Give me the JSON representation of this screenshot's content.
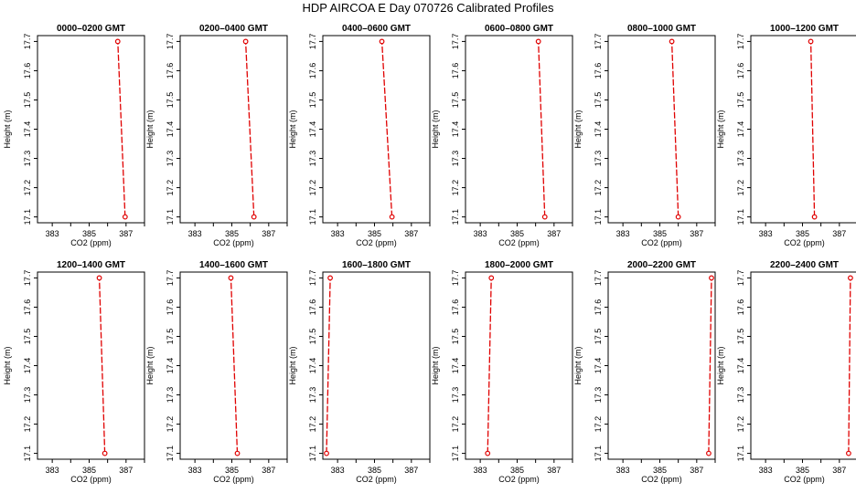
{
  "figure": {
    "title": "HDP  AIRCOA E  Day 070726  Calibrated Profiles"
  },
  "chart_data": [
    {
      "type": "line",
      "title": "0000–0200 GMT",
      "xlabel": "CO2 (ppm)",
      "ylabel": "Height (m)",
      "xticks": [
        "383",
        "385",
        "387"
      ],
      "yticks": [
        "17.1",
        "17.2",
        "17.3",
        "17.4",
        "17.5",
        "17.6",
        "17.7"
      ],
      "xlim": [
        382.2,
        388.0
      ],
      "ylim": [
        17.08,
        17.72
      ],
      "grid": false,
      "line_style": "dashed",
      "color": "#e00000",
      "x": [
        386.95,
        386.55
      ],
      "y": [
        17.1,
        17.7
      ]
    },
    {
      "type": "line",
      "title": "0200–0400 GMT",
      "xlabel": "CO2 (ppm)",
      "ylabel": "Height (m)",
      "xticks": [
        "383",
        "385",
        "387"
      ],
      "yticks": [
        "17.1",
        "17.2",
        "17.3",
        "17.4",
        "17.5",
        "17.6",
        "17.7"
      ],
      "xlim": [
        382.2,
        388.0
      ],
      "ylim": [
        17.08,
        17.72
      ],
      "grid": false,
      "line_style": "dashed",
      "color": "#e00000",
      "x": [
        386.2,
        385.75
      ],
      "y": [
        17.1,
        17.7
      ]
    },
    {
      "type": "line",
      "title": "0400–0600 GMT",
      "xlabel": "CO2 (ppm)",
      "ylabel": "Height (m)",
      "xticks": [
        "383",
        "385",
        "387"
      ],
      "yticks": [
        "17.1",
        "17.2",
        "17.3",
        "17.4",
        "17.5",
        "17.6",
        "17.7"
      ],
      "xlim": [
        382.2,
        388.0
      ],
      "ylim": [
        17.08,
        17.72
      ],
      "grid": false,
      "line_style": "dashed",
      "color": "#e00000",
      "x": [
        385.95,
        385.4
      ],
      "y": [
        17.1,
        17.7
      ]
    },
    {
      "type": "line",
      "title": "0600–0800 GMT",
      "xlabel": "CO2 (ppm)",
      "ylabel": "Height (m)",
      "xticks": [
        "383",
        "385",
        "387"
      ],
      "yticks": [
        "17.1",
        "17.2",
        "17.3",
        "17.4",
        "17.5",
        "17.6",
        "17.7"
      ],
      "xlim": [
        382.2,
        388.0
      ],
      "ylim": [
        17.08,
        17.72
      ],
      "grid": false,
      "line_style": "dashed",
      "color": "#e00000",
      "x": [
        386.5,
        386.15
      ],
      "y": [
        17.1,
        17.7
      ]
    },
    {
      "type": "line",
      "title": "0800–1000 GMT",
      "xlabel": "CO2 (ppm)",
      "ylabel": "Height (m)",
      "xticks": [
        "383",
        "385",
        "387"
      ],
      "yticks": [
        "17.1",
        "17.2",
        "17.3",
        "17.4",
        "17.5",
        "17.6",
        "17.7"
      ],
      "xlim": [
        382.2,
        388.0
      ],
      "ylim": [
        17.08,
        17.72
      ],
      "grid": false,
      "line_style": "dashed",
      "color": "#e00000",
      "x": [
        386.0,
        385.65
      ],
      "y": [
        17.1,
        17.7
      ]
    },
    {
      "type": "line",
      "title": "1000–1200 GMT",
      "xlabel": "CO2 (ppm)",
      "ylabel": "Height (m)",
      "xticks": [
        "383",
        "385",
        "387"
      ],
      "yticks": [
        "17.1",
        "17.2",
        "17.3",
        "17.4",
        "17.5",
        "17.6",
        "17.7"
      ],
      "xlim": [
        382.2,
        388.0
      ],
      "ylim": [
        17.08,
        17.72
      ],
      "grid": false,
      "line_style": "dashed",
      "color": "#e00000",
      "x": [
        385.65,
        385.45
      ],
      "y": [
        17.1,
        17.7
      ]
    },
    {
      "type": "line",
      "title": "1200–1400 GMT",
      "xlabel": "CO2 (ppm)",
      "ylabel": "Height (m)",
      "xticks": [
        "383",
        "385",
        "387"
      ],
      "yticks": [
        "17.1",
        "17.2",
        "17.3",
        "17.4",
        "17.5",
        "17.6",
        "17.7"
      ],
      "xlim": [
        382.2,
        388.0
      ],
      "ylim": [
        17.08,
        17.72
      ],
      "grid": false,
      "line_style": "dashed",
      "color": "#e00000",
      "x": [
        385.85,
        385.55
      ],
      "y": [
        17.1,
        17.7
      ]
    },
    {
      "type": "line",
      "title": "1400–1600 GMT",
      "xlabel": "CO2 (ppm)",
      "ylabel": "Height (m)",
      "xticks": [
        "383",
        "385",
        "387"
      ],
      "yticks": [
        "17.1",
        "17.2",
        "17.3",
        "17.4",
        "17.5",
        "17.6",
        "17.7"
      ],
      "xlim": [
        382.2,
        388.0
      ],
      "ylim": [
        17.08,
        17.72
      ],
      "grid": false,
      "line_style": "dashed",
      "color": "#e00000",
      "x": [
        385.3,
        384.95
      ],
      "y": [
        17.1,
        17.7
      ]
    },
    {
      "type": "line",
      "title": "1600–1800 GMT",
      "xlabel": "CO2 (ppm)",
      "ylabel": "Height (m)",
      "xticks": [
        "383",
        "385",
        "387"
      ],
      "yticks": [
        "17.1",
        "17.2",
        "17.3",
        "17.4",
        "17.5",
        "17.6",
        "17.7"
      ],
      "xlim": [
        382.2,
        388.0
      ],
      "ylim": [
        17.08,
        17.72
      ],
      "grid": false,
      "line_style": "dashed",
      "color": "#e00000",
      "x": [
        382.4,
        382.6
      ],
      "y": [
        17.1,
        17.7
      ]
    },
    {
      "type": "line",
      "title": "1800–2000 GMT",
      "xlabel": "CO2 (ppm)",
      "ylabel": "Height (m)",
      "xticks": [
        "383",
        "385",
        "387"
      ],
      "yticks": [
        "17.1",
        "17.2",
        "17.3",
        "17.4",
        "17.5",
        "17.6",
        "17.7"
      ],
      "xlim": [
        382.2,
        388.0
      ],
      "ylim": [
        17.08,
        17.72
      ],
      "grid": false,
      "line_style": "dashed",
      "color": "#e00000",
      "x": [
        383.4,
        383.6
      ],
      "y": [
        17.1,
        17.7
      ]
    },
    {
      "type": "line",
      "title": "2000–2200 GMT",
      "xlabel": "CO2 (ppm)",
      "ylabel": "Height (m)",
      "xticks": [
        "383",
        "385",
        "387"
      ],
      "yticks": [
        "17.1",
        "17.2",
        "17.3",
        "17.4",
        "17.5",
        "17.6",
        "17.7"
      ],
      "xlim": [
        382.2,
        388.0
      ],
      "ylim": [
        17.08,
        17.72
      ],
      "grid": false,
      "line_style": "dashed",
      "color": "#e00000",
      "x": [
        387.65,
        387.8
      ],
      "y": [
        17.1,
        17.7
      ]
    },
    {
      "type": "line",
      "title": "2200–2400 GMT",
      "xlabel": "CO2 (ppm)",
      "ylabel": "Height (m)",
      "xticks": [
        "383",
        "385",
        "387"
      ],
      "yticks": [
        "17.1",
        "17.2",
        "17.3",
        "17.4",
        "17.5",
        "17.6",
        "17.7"
      ],
      "xlim": [
        382.2,
        388.0
      ],
      "ylim": [
        17.08,
        17.72
      ],
      "grid": false,
      "line_style": "dashed",
      "color": "#e00000",
      "x": [
        387.5,
        387.6
      ],
      "y": [
        17.1,
        17.7
      ]
    }
  ]
}
